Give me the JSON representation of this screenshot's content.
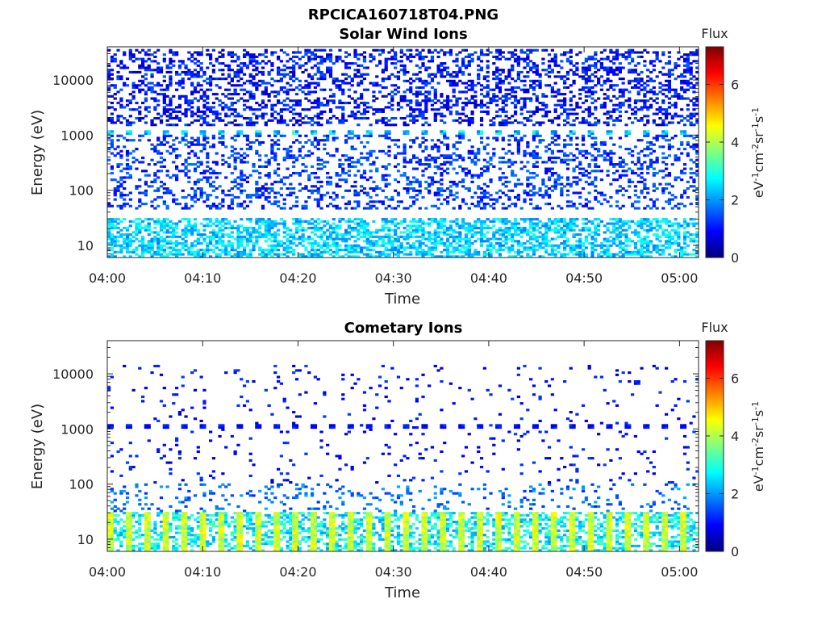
{
  "figure_title": "RPCICA160718T04.PNG",
  "chart_data": [
    {
      "type": "heatmap",
      "title": "Solar Wind Ions",
      "xlabel": "Time",
      "ylabel": "Energy (eV)",
      "x_range": [
        "04:00",
        "05:02"
      ],
      "x_ticks": [
        "04:00",
        "04:10",
        "04:20",
        "04:30",
        "04:40",
        "04:50",
        "05:00"
      ],
      "y_scale": "log",
      "y_range": [
        6,
        40000
      ],
      "y_ticks": [
        {
          "value": 10,
          "label": "10"
        },
        {
          "value": 100,
          "label": "100"
        },
        {
          "value": 1000,
          "label": "1000"
        },
        {
          "value": 10000,
          "label": "10000"
        }
      ],
      "colorbar": {
        "title": "Flux",
        "label": "eV-1cm-2sr-1s-1",
        "range": [
          0,
          7.3
        ],
        "ticks": [
          0,
          2,
          4,
          6
        ],
        "colormap": "jet"
      },
      "pattern": {
        "high_band": {
          "energy_range": [
            1500,
            38000
          ],
          "flux_range": [
            0.4,
            1.6
          ]
        },
        "peak_1keV": {
          "energy": 1150,
          "flux_range": [
            1.6,
            3.3
          ]
        },
        "mid_band": {
          "energy_range": [
            45,
            1000
          ],
          "flux_range": [
            0.8,
            1.8
          ]
        },
        "low_band": {
          "energy_range": [
            6,
            30
          ],
          "flux_range": [
            1.8,
            3.0
          ]
        }
      }
    },
    {
      "type": "heatmap",
      "title": "Cometary Ions",
      "xlabel": "Time",
      "ylabel": "Energy (eV)",
      "x_range": [
        "04:00",
        "05:02"
      ],
      "x_ticks": [
        "04:00",
        "04:10",
        "04:20",
        "04:30",
        "04:40",
        "04:50",
        "05:00"
      ],
      "y_scale": "log",
      "y_range": [
        6,
        40000
      ],
      "y_ticks": [
        {
          "value": 10,
          "label": "10"
        },
        {
          "value": 100,
          "label": "100"
        },
        {
          "value": 1000,
          "label": "1000"
        },
        {
          "value": 10000,
          "label": "10000"
        }
      ],
      "colorbar": {
        "title": "Flux",
        "label": "eV-1cm-2sr-1s-1",
        "range": [
          0,
          7.3
        ],
        "ticks": [
          0,
          2,
          4,
          6
        ],
        "colormap": "jet"
      },
      "pattern": {
        "sparse_high": {
          "energy_range": [
            100,
            14000
          ],
          "flux_range": [
            0.6,
            1.4
          ]
        },
        "peak_1keV": {
          "energy": 1150,
          "flux_range": [
            0.7,
            1.3
          ]
        },
        "low_band": {
          "energy_range": [
            6,
            30
          ],
          "flux_range": [
            2.0,
            4.8
          ]
        }
      }
    }
  ]
}
